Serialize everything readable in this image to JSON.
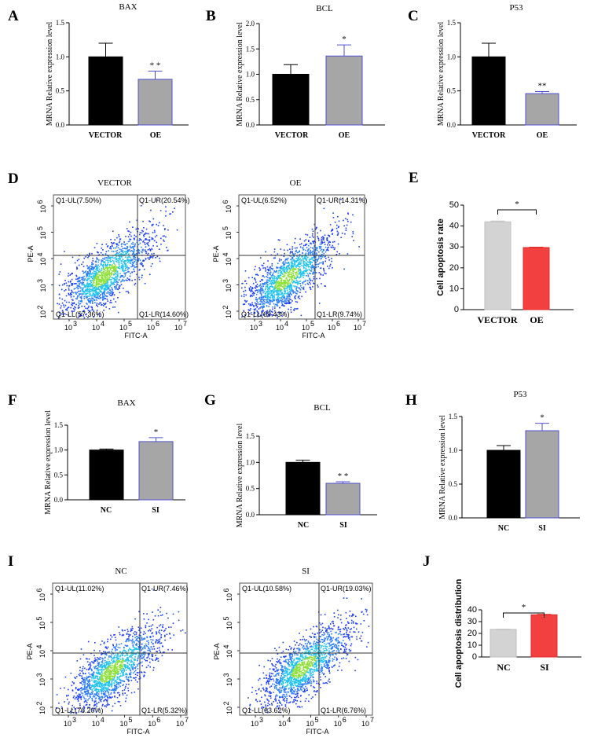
{
  "panels": {
    "A": "A",
    "B": "B",
    "C": "C",
    "D": "D",
    "E": "E",
    "F": "F",
    "G": "G",
    "H": "H",
    "I": "I",
    "J": "J"
  },
  "colors": {
    "black_bar": "#000000",
    "grey_bar": "#a6a6a6",
    "grey_bar_edge": "#5050d0",
    "light_bar": "#d3d3d3",
    "red_bar": "#f24040",
    "density_low": "#1a3cff",
    "density_mid": "#23c4f0",
    "density_high": "#8fe03a"
  },
  "chart_data": [
    {
      "id": "A",
      "type": "bar",
      "title": "BAX",
      "ylabel": "MRNA Relative expression level",
      "categories": [
        "VECTOR",
        "OE"
      ],
      "values": [
        1.0,
        0.67
      ],
      "errors": [
        0.2,
        0.12
      ],
      "significance": [
        "",
        "* *"
      ],
      "ylim": [
        0,
        1.5
      ],
      "yticks": [
        "0.0",
        "0.5",
        "1.0",
        "1.5"
      ]
    },
    {
      "id": "B",
      "type": "bar",
      "title": "BCL",
      "ylabel": "MRNA Relative expression level",
      "categories": [
        "VECTOR",
        "OE"
      ],
      "values": [
        1.0,
        1.36
      ],
      "errors": [
        0.19,
        0.22
      ],
      "significance": [
        "",
        "*"
      ],
      "ylim": [
        0,
        2.0
      ],
      "yticks": [
        "0.0",
        "0.5",
        "1.0",
        "1.5",
        "2.0"
      ]
    },
    {
      "id": "C",
      "type": "bar",
      "title": "P53",
      "ylabel": "MRNA Relative expression level",
      "categories": [
        "VECTOR",
        "OE"
      ],
      "values": [
        1.0,
        0.46
      ],
      "errors": [
        0.2,
        0.03
      ],
      "significance": [
        "",
        "**"
      ],
      "ylim": [
        0,
        1.5
      ],
      "yticks": [
        "0.0",
        "0.5",
        "1.0",
        "1.5"
      ]
    },
    {
      "id": "E",
      "type": "bar",
      "ylabel": "Cell apoptosis rate",
      "categories": [
        "VECTOR",
        "OE"
      ],
      "values": [
        42.0,
        29.7
      ],
      "errors": [
        0.4,
        0.2
      ],
      "significance_bracket": "*",
      "ylim": [
        0,
        50
      ],
      "yticks": [
        "0",
        "10",
        "20",
        "30",
        "40",
        "50"
      ]
    },
    {
      "id": "F",
      "type": "bar",
      "title": "BAX",
      "ylabel": "MRNA Relative expression level",
      "categories": [
        "NC",
        "SI"
      ],
      "values": [
        1.0,
        1.17
      ],
      "errors": [
        0.02,
        0.08
      ],
      "significance": [
        "",
        "*"
      ],
      "ylim": [
        0,
        1.5
      ],
      "yticks": [
        "0.0",
        "0.5",
        "1.0",
        "1.5"
      ]
    },
    {
      "id": "G",
      "type": "bar",
      "title": "BCL",
      "ylabel": "MRNA Relative expression level",
      "categories": [
        "NC",
        "SI"
      ],
      "values": [
        1.0,
        0.6
      ],
      "errors": [
        0.04,
        0.03
      ],
      "significance": [
        "",
        "* *"
      ],
      "ylim": [
        0,
        1.5
      ],
      "yticks": [
        "0.0",
        "0.5",
        "1.0",
        "1.5"
      ]
    },
    {
      "id": "H",
      "type": "bar",
      "title": "P53",
      "ylabel": "MRNA Relative expression level",
      "categories": [
        "NC",
        "SI"
      ],
      "values": [
        1.0,
        1.29
      ],
      "errors": [
        0.07,
        0.11
      ],
      "significance": [
        "",
        "*"
      ],
      "ylim": [
        0,
        1.5
      ],
      "yticks": [
        "0.0",
        "0.5",
        "1.0",
        "1.5"
      ]
    },
    {
      "id": "J",
      "type": "bar",
      "ylabel": "Cell apoptosis distribution",
      "categories": [
        "NC",
        "SI"
      ],
      "values": [
        23.4,
        35.8
      ],
      "errors": [
        0.2,
        0.4
      ],
      "significance_bracket": "*",
      "ylim": [
        0,
        40
      ],
      "yticks": [
        "0",
        "10",
        "20",
        "30",
        "40"
      ]
    },
    {
      "id": "D1",
      "type": "scatter",
      "title": "VECTOR",
      "xlabel": "FITC-A",
      "ylabel": "PE-A",
      "quadrants": {
        "UL": "Q1-UL(7.50%)",
        "UR": "Q1-UR(20.54%)",
        "LL": "Q1-LL(57.36%)",
        "LR": "Q1-LR(14.60%)"
      },
      "xticks": [
        "3",
        "4",
        "5",
        "6",
        "7"
      ],
      "yticks": [
        "2",
        "3",
        "4",
        "5",
        "6"
      ]
    },
    {
      "id": "D2",
      "type": "scatter",
      "title": "OE",
      "xlabel": "FITC-A",
      "ylabel": "PE-A",
      "quadrants": {
        "UL": "Q1-UL(6.52%)",
        "UR": "Q1-UR(14.31%)",
        "LL": "Q1-LL(69.43%)",
        "LR": "Q1-LR(9.74%)"
      },
      "xticks": [
        "3",
        "4",
        "5",
        "6",
        "7"
      ],
      "yticks": [
        "2",
        "3",
        "4",
        "5",
        "6"
      ]
    },
    {
      "id": "I1",
      "type": "scatter",
      "title": "NC",
      "xlabel": "FITC-A",
      "ylabel": "PE-A",
      "quadrants": {
        "UL": "Q1-UL(11.02%)",
        "UR": "Q1-UR(7.46%)",
        "LL": "Q1-LL(76.20%)",
        "LR": "Q1-LR(5.32%)"
      },
      "xticks": [
        "3",
        "4",
        "5",
        "6",
        "7"
      ],
      "yticks": [
        "2",
        "3",
        "4",
        "5",
        "6"
      ]
    },
    {
      "id": "I2",
      "type": "scatter",
      "title": "SI",
      "xlabel": "FITC-A",
      "ylabel": "PE-A",
      "quadrants": {
        "UL": "Q1-UL(10.58%)",
        "UR": "Q1-UR(19.03%)",
        "LL": "Q1-LL(63.62%)",
        "LR": "Q1-LR(6.76%)"
      },
      "xticks": [
        "3",
        "4",
        "5",
        "6",
        "7"
      ],
      "yticks": [
        "2",
        "3",
        "4",
        "5",
        "6"
      ]
    }
  ]
}
